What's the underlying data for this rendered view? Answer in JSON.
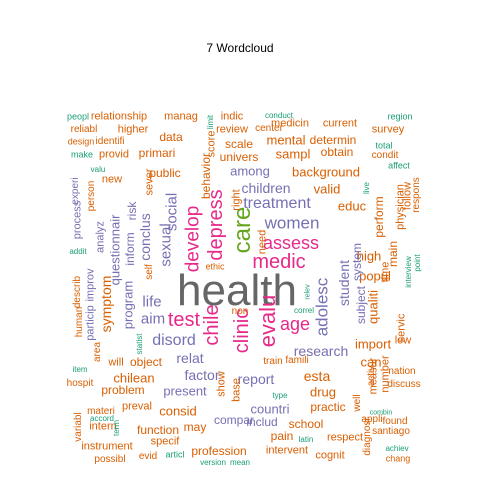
{
  "title": "7  Wordcloud",
  "palette": {
    "orange": "#d95f02",
    "purple": "#7570b3",
    "magenta": "#e7298a",
    "green": "#66a61e",
    "gold": "#a6761d",
    "gray": "#666666",
    "teal": "#1b9e77",
    "yellow": "#e6ab02"
  },
  "words": [
    {
      "text": "health",
      "color": "#666666"
    },
    {
      "text": "care",
      "color": "#66a61e"
    },
    {
      "text": "depress",
      "color": "#e7298a"
    },
    {
      "text": "medic",
      "color": "#e7298a"
    },
    {
      "text": "clinic",
      "color": "#e7298a"
    },
    {
      "text": "chile",
      "color": "#e7298a"
    },
    {
      "text": "evalu",
      "color": "#e7298a"
    },
    {
      "text": "test",
      "color": "#e7298a"
    },
    {
      "text": "assess",
      "color": "#e7298a"
    },
    {
      "text": "develop",
      "color": "#e7298a"
    },
    {
      "text": "age",
      "color": "#e7298a"
    },
    {
      "text": "women",
      "color": "#7570b3"
    },
    {
      "text": "treatment",
      "color": "#7570b3"
    },
    {
      "text": "disord",
      "color": "#7570b3"
    },
    {
      "text": "aim",
      "color": "#7570b3"
    },
    {
      "text": "adolesc",
      "color": "#7570b3"
    },
    {
      "text": "research",
      "color": "#7570b3"
    },
    {
      "text": "children",
      "color": "#7570b3"
    },
    {
      "text": "sexual",
      "color": "#7570b3"
    },
    {
      "text": "social",
      "color": "#7570b3"
    },
    {
      "text": "life",
      "color": "#7570b3"
    },
    {
      "text": "relat",
      "color": "#7570b3"
    },
    {
      "text": "factor",
      "color": "#7570b3"
    },
    {
      "text": "report",
      "color": "#7570b3"
    },
    {
      "text": "student",
      "color": "#7570b3"
    },
    {
      "text": "background",
      "color": "#d95f02"
    },
    {
      "text": "behavior",
      "color": "#d95f02"
    },
    {
      "text": "among",
      "color": "#7570b3"
    },
    {
      "text": "valid",
      "color": "#d95f02"
    },
    {
      "text": "educ",
      "color": "#d95f02"
    },
    {
      "text": "high",
      "color": "#d95f02"
    },
    {
      "text": "popul",
      "color": "#d95f02"
    },
    {
      "text": "esta",
      "color": "#d95f02"
    },
    {
      "text": "drug",
      "color": "#d95f02"
    },
    {
      "text": "can",
      "color": "#d95f02"
    },
    {
      "text": "import",
      "color": "#d95f02"
    },
    {
      "text": "system",
      "color": "#7570b3"
    },
    {
      "text": "subject",
      "color": "#7570b3"
    },
    {
      "text": "qualiti",
      "color": "#d95f02"
    },
    {
      "text": "chilean",
      "color": "#d95f02"
    },
    {
      "text": "present",
      "color": "#7570b3"
    },
    {
      "text": "consid",
      "color": "#d95f02"
    },
    {
      "text": "countri",
      "color": "#7570b3"
    },
    {
      "text": "compar",
      "color": "#7570b3"
    },
    {
      "text": "includ",
      "color": "#7570b3"
    },
    {
      "text": "school",
      "color": "#d95f02"
    },
    {
      "text": "practic",
      "color": "#d95f02"
    },
    {
      "text": "pain",
      "color": "#d95f02"
    },
    {
      "text": "function",
      "color": "#d95f02"
    },
    {
      "text": "profession",
      "color": "#d95f02"
    },
    {
      "text": "intervent",
      "color": "#d95f02"
    },
    {
      "text": "cognit",
      "color": "#d95f02"
    },
    {
      "text": "respect",
      "color": "#d95f02"
    },
    {
      "text": "mental",
      "color": "#d95f02"
    },
    {
      "text": "sampl",
      "color": "#d95f02"
    },
    {
      "text": "obtain",
      "color": "#d95f02"
    },
    {
      "text": "determin",
      "color": "#d95f02"
    },
    {
      "text": "review",
      "color": "#d95f02"
    },
    {
      "text": "univers",
      "color": "#d95f02"
    },
    {
      "text": "scale",
      "color": "#d95f02"
    },
    {
      "text": "medicin",
      "color": "#d95f02"
    },
    {
      "text": "current",
      "color": "#d95f02"
    },
    {
      "text": "center",
      "color": "#d95f02"
    },
    {
      "text": "indic",
      "color": "#d95f02"
    },
    {
      "text": "data",
      "color": "#d95f02"
    },
    {
      "text": "primari",
      "color": "#d95f02"
    },
    {
      "text": "relationship",
      "color": "#d95f02"
    },
    {
      "text": "manag",
      "color": "#d95f02"
    },
    {
      "text": "higher",
      "color": "#d95f02"
    },
    {
      "text": "sever",
      "color": "#d95f02"
    },
    {
      "text": "public",
      "color": "#d95f02"
    },
    {
      "text": "conclus",
      "color": "#7570b3"
    },
    {
      "text": "risk",
      "color": "#7570b3"
    },
    {
      "text": "inform",
      "color": "#7570b3"
    },
    {
      "text": "questionnair",
      "color": "#7570b3"
    },
    {
      "text": "program",
      "color": "#7570b3"
    },
    {
      "text": "symptom",
      "color": "#d95f02"
    },
    {
      "text": "analyz",
      "color": "#7570b3"
    },
    {
      "text": "improv",
      "color": "#7570b3"
    },
    {
      "text": "particip",
      "color": "#7570b3"
    },
    {
      "text": "process",
      "color": "#7570b3"
    },
    {
      "text": "experi",
      "color": "#7570b3"
    },
    {
      "text": "person",
      "color": "#d95f02"
    },
    {
      "text": "new",
      "color": "#d95f02"
    },
    {
      "text": "provid",
      "color": "#d95f02"
    },
    {
      "text": "identifi",
      "color": "#d95f02"
    },
    {
      "text": "design",
      "color": "#d95f02"
    },
    {
      "text": "reliabl",
      "color": "#d95f02"
    },
    {
      "text": "peopl",
      "color": "#1b9e77"
    },
    {
      "text": "make",
      "color": "#1b9e77"
    },
    {
      "text": "valu",
      "color": "#1b9e77"
    },
    {
      "text": "addit",
      "color": "#1b9e77"
    },
    {
      "text": "describ",
      "color": "#d95f02"
    },
    {
      "text": "human",
      "color": "#d95f02"
    },
    {
      "text": "area",
      "color": "#d95f02"
    },
    {
      "text": "will",
      "color": "#d95f02"
    },
    {
      "text": "object",
      "color": "#d95f02"
    },
    {
      "text": "problem",
      "color": "#d95f02"
    },
    {
      "text": "preval",
      "color": "#d95f02"
    },
    {
      "text": "intern",
      "color": "#d95f02"
    },
    {
      "text": "materi",
      "color": "#d95f02"
    },
    {
      "text": "variabl",
      "color": "#d95f02"
    },
    {
      "text": "hospit",
      "color": "#d95f02"
    },
    {
      "text": "item",
      "color": "#1b9e77"
    },
    {
      "text": "accord",
      "color": "#1b9e77"
    },
    {
      "text": "instrument",
      "color": "#d95f02"
    },
    {
      "text": "possibl",
      "color": "#d95f02"
    },
    {
      "text": "evid",
      "color": "#d95f02"
    },
    {
      "text": "articl",
      "color": "#1b9e77"
    },
    {
      "text": "specif",
      "color": "#d95f02"
    },
    {
      "text": "may",
      "color": "#d95f02"
    },
    {
      "text": "version",
      "color": "#1b9e77"
    },
    {
      "text": "mean",
      "color": "#1b9e77"
    },
    {
      "text": "latin",
      "color": "#1b9e77"
    },
    {
      "text": "chang",
      "color": "#d95f02"
    },
    {
      "text": "achiev",
      "color": "#1b9e77"
    },
    {
      "text": "santiago",
      "color": "#d95f02"
    },
    {
      "text": "combin",
      "color": "#1b9e77"
    },
    {
      "text": "found",
      "color": "#d95f02"
    },
    {
      "text": "diagnosi",
      "color": "#d95f02"
    },
    {
      "text": "appli",
      "color": "#d95f02"
    },
    {
      "text": "well",
      "color": "#d95f02"
    },
    {
      "text": "type",
      "color": "#1b9e77"
    },
    {
      "text": "measur",
      "color": "#d95f02"
    },
    {
      "text": "activ",
      "color": "#d95f02"
    },
    {
      "text": "number",
      "color": "#d95f02"
    },
    {
      "text": "nation",
      "color": "#d95f02"
    },
    {
      "text": "discuss",
      "color": "#d95f02"
    },
    {
      "text": "low",
      "color": "#d95f02"
    },
    {
      "text": "servic",
      "color": "#d95f02"
    },
    {
      "text": "perform",
      "color": "#d95f02"
    },
    {
      "text": "main",
      "color": "#d95f02"
    },
    {
      "text": "physician",
      "color": "#d95f02"
    },
    {
      "text": "follow",
      "color": "#d95f02"
    },
    {
      "text": "respons",
      "color": "#d95f02"
    },
    {
      "text": "interview",
      "color": "#1b9e77"
    },
    {
      "text": "point",
      "color": "#1b9e77"
    },
    {
      "text": "time",
      "color": "#d95f02"
    },
    {
      "text": "condit",
      "color": "#d95f02"
    },
    {
      "text": "survey",
      "color": "#d95f02"
    },
    {
      "text": "region",
      "color": "#1b9e77"
    },
    {
      "text": "total",
      "color": "#1b9e77"
    },
    {
      "text": "affect",
      "color": "#1b9e77"
    },
    {
      "text": "live",
      "color": "#1b9e77"
    },
    {
      "text": "conduct",
      "color": "#1b9e77"
    },
    {
      "text": "limit",
      "color": "#1b9e77"
    },
    {
      "text": "score",
      "color": "#d95f02"
    },
    {
      "text": "right",
      "color": "#d95f02"
    },
    {
      "text": "need",
      "color": "#d95f02"
    },
    {
      "text": "ethic",
      "color": "#d95f02"
    },
    {
      "text": "non",
      "color": "#d95f02"
    },
    {
      "text": "correl",
      "color": "#1b9e77"
    },
    {
      "text": "relev",
      "color": "#1b9e77"
    },
    {
      "text": "famili",
      "color": "#d95f02"
    },
    {
      "text": "train",
      "color": "#d95f02"
    },
    {
      "text": "base",
      "color": "#d95f02"
    },
    {
      "text": "show",
      "color": "#d95f02"
    },
    {
      "text": "self",
      "color": "#d95f02"
    },
    {
      "text": "statist",
      "color": "#1b9e77"
    },
    {
      "text": "term",
      "color": "#1b9e77"
    }
  ]
}
